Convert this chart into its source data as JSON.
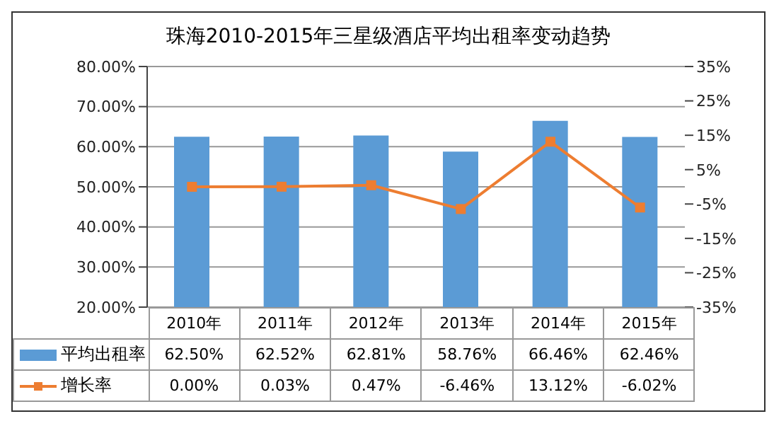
{
  "chart_data": {
    "type": "bar",
    "title": "珠海2010-2015年三星级酒店平均出租率变动趋势",
    "categories": [
      "2010年",
      "2011年",
      "2012年",
      "2013年",
      "2014年",
      "2015年"
    ],
    "series": [
      {
        "name": "平均出租率",
        "color": "#5b9bd5",
        "values": [
          62.5,
          62.52,
          62.81,
          58.76,
          66.46,
          62.46
        ],
        "value_labels": [
          "62.50%",
          "62.52%",
          "62.81%",
          "58.76%",
          "66.46%",
          "62.46%"
        ]
      },
      {
        "name": "增长率",
        "type": "line",
        "axis": "y2",
        "color": "#ed7d31",
        "values": [
          0.0,
          0.03,
          0.47,
          -6.46,
          13.12,
          -6.02
        ],
        "value_labels": [
          "0.00%",
          "0.03%",
          "0.47%",
          "-6.46%",
          "13.12%",
          "-6.02%"
        ]
      }
    ],
    "ylim": [
      20,
      80
    ],
    "yticks": [
      {
        "value": 20,
        "label": "20.00%"
      },
      {
        "value": 30,
        "label": "30.00%"
      },
      {
        "value": 40,
        "label": "40.00%"
      },
      {
        "value": 50,
        "label": "50.00%"
      },
      {
        "value": 60,
        "label": "60.00%"
      },
      {
        "value": 70,
        "label": "70.00%"
      },
      {
        "value": 80,
        "label": "80.00%"
      }
    ],
    "y2lim": [
      -35,
      35
    ],
    "y2ticks": [
      {
        "value": -35,
        "label": "-35%"
      },
      {
        "value": -25,
        "label": "-25%"
      },
      {
        "value": -15,
        "label": "-15%"
      },
      {
        "value": -5,
        "label": "-5%"
      },
      {
        "value": 5,
        "label": "5%"
      },
      {
        "value": 15,
        "label": "15%"
      },
      {
        "value": 25,
        "label": "25%"
      },
      {
        "value": 35,
        "label": "35%"
      }
    ],
    "grid": "y",
    "legend": "bottom",
    "marker": "square"
  }
}
